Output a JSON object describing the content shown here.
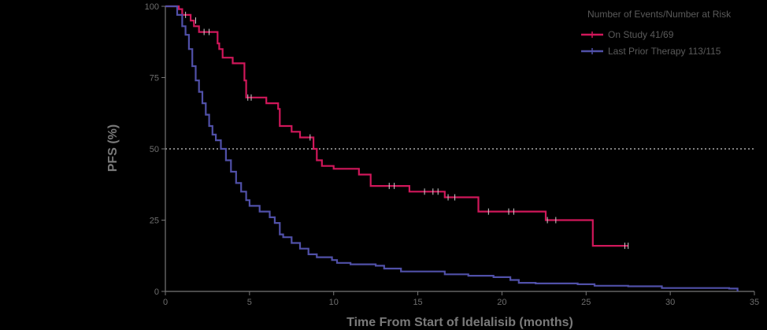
{
  "chart_data": {
    "type": "line",
    "subtype": "kaplan-meier",
    "xlabel": "Time From Start of Idelalisib (months)",
    "ylabel": "PFS (%)",
    "xlim": [
      0,
      35
    ],
    "ylim": [
      0,
      100
    ],
    "x_ticks": [
      {
        "value": 0,
        "label": "0"
      },
      {
        "value": 5,
        "label": "5"
      },
      {
        "value": 10,
        "label": "10"
      },
      {
        "value": 15,
        "label": "15"
      },
      {
        "value": 20,
        "label": "20"
      },
      {
        "value": 25,
        "label": "25"
      },
      {
        "value": 30,
        "label": "30"
      },
      {
        "value": 35,
        "label": "35"
      }
    ],
    "y_ticks": [
      {
        "value": 0,
        "label": "0"
      },
      {
        "value": 25,
        "label": "25"
      },
      {
        "value": 50,
        "label": "50"
      },
      {
        "value": 75,
        "label": "75"
      },
      {
        "value": 100,
        "label": "100"
      }
    ],
    "reference_line": {
      "y": 50,
      "style": "dotted",
      "color": "#ffffff"
    },
    "legend": {
      "title": "Number of Events/Number at Risk",
      "placement": "top-right"
    },
    "series": [
      {
        "name": "On Study 41/69",
        "color": "#d0175a",
        "steps": [
          [
            0,
            100
          ],
          [
            0.7,
            100
          ],
          [
            0.8,
            99
          ],
          [
            1.0,
            97
          ],
          [
            1.5,
            95
          ],
          [
            1.7,
            93
          ],
          [
            2.0,
            91
          ],
          [
            2.9,
            91
          ],
          [
            3.1,
            87
          ],
          [
            3.2,
            85
          ],
          [
            3.4,
            82
          ],
          [
            4.0,
            80
          ],
          [
            4.6,
            80
          ],
          [
            4.7,
            74
          ],
          [
            4.8,
            68
          ],
          [
            5.8,
            68
          ],
          [
            6.0,
            66
          ],
          [
            6.5,
            66
          ],
          [
            6.7,
            64
          ],
          [
            6.8,
            58
          ],
          [
            7.5,
            56
          ],
          [
            8.0,
            54
          ],
          [
            8.7,
            54
          ],
          [
            8.8,
            50
          ],
          [
            9.0,
            46
          ],
          [
            9.3,
            44
          ],
          [
            10.0,
            43
          ],
          [
            11.2,
            43
          ],
          [
            11.5,
            41
          ],
          [
            12.2,
            37
          ],
          [
            13.5,
            37
          ],
          [
            14.5,
            35
          ],
          [
            16.5,
            35
          ],
          [
            16.6,
            33
          ],
          [
            18.5,
            33
          ],
          [
            18.6,
            28
          ],
          [
            20.5,
            28
          ],
          [
            22.5,
            28
          ],
          [
            22.6,
            25
          ],
          [
            25.3,
            25
          ],
          [
            25.4,
            16
          ],
          [
            27.5,
            16
          ]
        ],
        "censor_marks": [
          [
            1.2,
            97
          ],
          [
            1.8,
            95
          ],
          [
            2.3,
            91
          ],
          [
            2.6,
            91
          ],
          [
            4.9,
            68
          ],
          [
            5.1,
            68
          ],
          [
            8.6,
            54
          ],
          [
            13.3,
            37
          ],
          [
            13.6,
            37
          ],
          [
            15.4,
            35
          ],
          [
            15.9,
            35
          ],
          [
            16.2,
            35
          ],
          [
            16.8,
            33
          ],
          [
            17.2,
            33
          ],
          [
            19.2,
            28
          ],
          [
            20.4,
            28
          ],
          [
            20.7,
            28
          ],
          [
            22.7,
            25
          ],
          [
            23.2,
            25
          ],
          [
            27.3,
            16
          ],
          [
            27.5,
            16
          ]
        ]
      },
      {
        "name": "Last Prior Therapy 113/115",
        "color": "#5050a8",
        "steps": [
          [
            0,
            100
          ],
          [
            0.4,
            100
          ],
          [
            0.7,
            97
          ],
          [
            1.0,
            93
          ],
          [
            1.2,
            90
          ],
          [
            1.4,
            85
          ],
          [
            1.6,
            79
          ],
          [
            1.8,
            74
          ],
          [
            2.0,
            70
          ],
          [
            2.2,
            66
          ],
          [
            2.4,
            62
          ],
          [
            2.6,
            58
          ],
          [
            2.8,
            55
          ],
          [
            3.0,
            53
          ],
          [
            3.3,
            50
          ],
          [
            3.6,
            46
          ],
          [
            3.9,
            42
          ],
          [
            4.2,
            38
          ],
          [
            4.5,
            35
          ],
          [
            4.8,
            32
          ],
          [
            5.0,
            30
          ],
          [
            5.6,
            28
          ],
          [
            6.2,
            26
          ],
          [
            6.5,
            24
          ],
          [
            6.8,
            20
          ],
          [
            7.0,
            19
          ],
          [
            7.5,
            17
          ],
          [
            8.0,
            15
          ],
          [
            8.5,
            13
          ],
          [
            9.0,
            12
          ],
          [
            9.9,
            11
          ],
          [
            10.2,
            10
          ],
          [
            11.0,
            9.5
          ],
          [
            12.5,
            9
          ],
          [
            13.0,
            8
          ],
          [
            14.0,
            7
          ],
          [
            16.0,
            7
          ],
          [
            16.6,
            6
          ],
          [
            18.0,
            5.5
          ],
          [
            19.5,
            5
          ],
          [
            20.5,
            4
          ],
          [
            21.0,
            3
          ],
          [
            22.0,
            2.8
          ],
          [
            24.5,
            2.5
          ],
          [
            25.5,
            2
          ],
          [
            27.5,
            1.8
          ],
          [
            29.5,
            1.2
          ],
          [
            33.5,
            1
          ],
          [
            34.0,
            0
          ]
        ],
        "censor_marks": []
      }
    ]
  }
}
